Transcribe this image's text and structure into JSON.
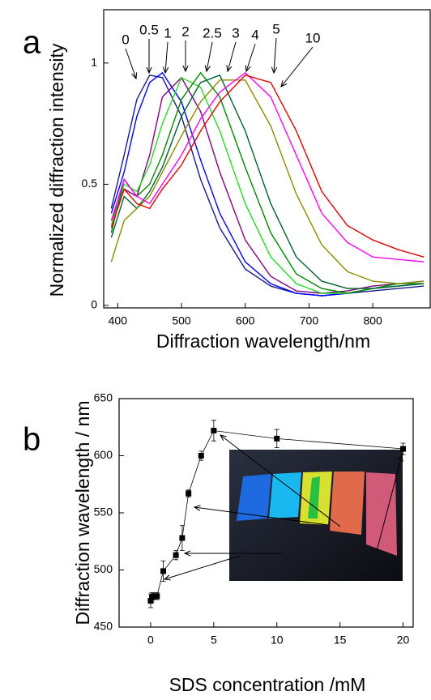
{
  "chart_data": [
    {
      "type": "line",
      "panel_label": "a",
      "x_label": "Diffraction wavelength/nm",
      "y_label": "Normalized diffraction intensity",
      "x": [
        390,
        410,
        430,
        450,
        470,
        500,
        530,
        560,
        600,
        640,
        680,
        720,
        760,
        800,
        840,
        880
      ],
      "series": [
        {
          "name": "0",
          "color": "#1a1a8c",
          "values": [
            0.4,
            0.62,
            0.85,
            0.95,
            0.94,
            0.78,
            0.52,
            0.32,
            0.15,
            0.08,
            0.05,
            0.04,
            0.05,
            0.06,
            0.07,
            0.08
          ]
        },
        {
          "name": "0.5",
          "color": "#0000ff",
          "values": [
            0.38,
            0.55,
            0.78,
            0.92,
            0.96,
            0.84,
            0.6,
            0.38,
            0.18,
            0.09,
            0.05,
            0.04,
            0.05,
            0.07,
            0.08,
            0.09
          ]
        },
        {
          "name": "1",
          "color": "#800080",
          "values": [
            0.35,
            0.48,
            0.45,
            0.62,
            0.86,
            0.94,
            0.8,
            0.55,
            0.27,
            0.12,
            0.06,
            0.05,
            0.06,
            0.08,
            0.09,
            0.1
          ]
        },
        {
          "name": "2",
          "color": "#22dd22",
          "values": [
            0.33,
            0.5,
            0.47,
            0.58,
            0.75,
            0.94,
            0.9,
            0.72,
            0.42,
            0.2,
            0.09,
            0.05,
            0.05,
            0.07,
            0.08,
            0.09
          ]
        },
        {
          "name": "2.5",
          "color": "#008800",
          "values": [
            0.3,
            0.52,
            0.45,
            0.5,
            0.62,
            0.85,
            0.96,
            0.86,
            0.57,
            0.3,
            0.13,
            0.07,
            0.05,
            0.07,
            0.09,
            0.09
          ]
        },
        {
          "name": "3",
          "color": "#006030",
          "values": [
            0.28,
            0.45,
            0.4,
            0.47,
            0.57,
            0.78,
            0.92,
            0.95,
            0.72,
            0.42,
            0.2,
            0.1,
            0.07,
            0.07,
            0.08,
            0.09
          ]
        },
        {
          "name": "4",
          "color": "#8b8b00",
          "values": [
            0.18,
            0.35,
            0.4,
            0.45,
            0.55,
            0.7,
            0.84,
            0.93,
            0.93,
            0.74,
            0.46,
            0.25,
            0.14,
            0.1,
            0.09,
            0.1
          ]
        },
        {
          "name": "5",
          "color": "#ff00ff",
          "values": [
            0.35,
            0.52,
            0.45,
            0.42,
            0.5,
            0.62,
            0.77,
            0.88,
            0.96,
            0.86,
            0.62,
            0.38,
            0.26,
            0.2,
            0.19,
            0.18
          ]
        },
        {
          "name": "10",
          "color": "#e00000",
          "values": [
            0.32,
            0.48,
            0.42,
            0.4,
            0.48,
            0.58,
            0.72,
            0.84,
            0.95,
            0.92,
            0.72,
            0.47,
            0.33,
            0.27,
            0.23,
            0.2
          ]
        }
      ],
      "xlim": [
        378,
        890
      ],
      "ylim": [
        -0.01,
        1.22
      ],
      "xticks": [
        400,
        500,
        600,
        700,
        800
      ],
      "yticks": [
        0,
        0.5,
        1
      ]
    },
    {
      "type": "scatter",
      "panel_label": "b",
      "x_label": "SDS concentration /mM",
      "y_label": "Diffraction wavelength / nm",
      "color": "#000000",
      "x": [
        0,
        0.1,
        0.25,
        0.5,
        1,
        2,
        2.5,
        3,
        4,
        5,
        10,
        20
      ],
      "values": [
        473,
        476,
        477,
        477,
        499,
        513,
        528,
        567,
        600,
        622,
        615,
        606
      ],
      "errors": [
        6,
        4,
        3,
        3,
        9,
        4,
        11,
        3,
        4,
        9,
        8,
        5
      ],
      "xlim": [
        -2.5,
        20.8
      ],
      "ylim": [
        450,
        650
      ],
      "xticks": [
        0,
        5,
        10,
        15,
        20
      ],
      "yticks": [
        450,
        500,
        550,
        600,
        650
      ]
    }
  ]
}
